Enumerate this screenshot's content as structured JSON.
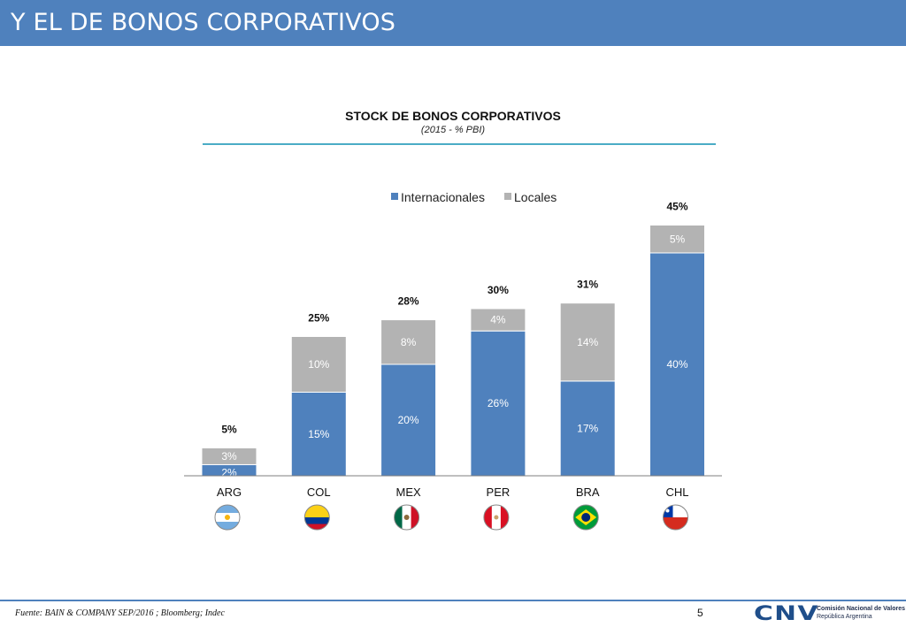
{
  "header": {
    "title": "Y EL DE BONOS CORPORATIVOS"
  },
  "chart_data": {
    "type": "bar",
    "stacked": true,
    "title": "STOCK DE BONOS CORPORATIVOS",
    "subtitle": "(2015 - % PBI)",
    "categories": [
      "ARG",
      "COL",
      "MEX",
      "PER",
      "BRA",
      "CHL"
    ],
    "series": [
      {
        "name": "Internacionales",
        "color": "#4f81bd",
        "values": [
          2,
          15,
          20,
          26,
          17,
          40
        ],
        "labels": [
          "2%",
          "15%",
          "20%",
          "26%",
          "17%",
          "40%"
        ]
      },
      {
        "name": "Locales",
        "color": "#b3b3b3",
        "values": [
          3,
          10,
          8,
          4,
          14,
          5
        ],
        "labels": [
          "3%",
          "10%",
          "8%",
          "4%",
          "14%",
          "5%"
        ]
      }
    ],
    "totals": [
      5,
      25,
      28,
      30,
      31,
      45
    ],
    "total_labels": [
      "5%",
      "25%",
      "28%",
      "30%",
      "31%",
      "45%"
    ],
    "legend_position": "top-center",
    "ylim": [
      0,
      45
    ],
    "grid": false,
    "flags": [
      "flag-argentina-icon",
      "flag-colombia-icon",
      "flag-mexico-icon",
      "flag-peru-icon",
      "flag-brazil-icon",
      "flag-chile-icon"
    ]
  },
  "footer": {
    "source": "Fuente: BAIN & COMPANY SEP/2016 ; Bloomberg; Indec",
    "page_number": "5",
    "logo_letters": "CNV",
    "logo_line1": "Comisión Nacional de Valores",
    "logo_line2": "República Argentina"
  }
}
